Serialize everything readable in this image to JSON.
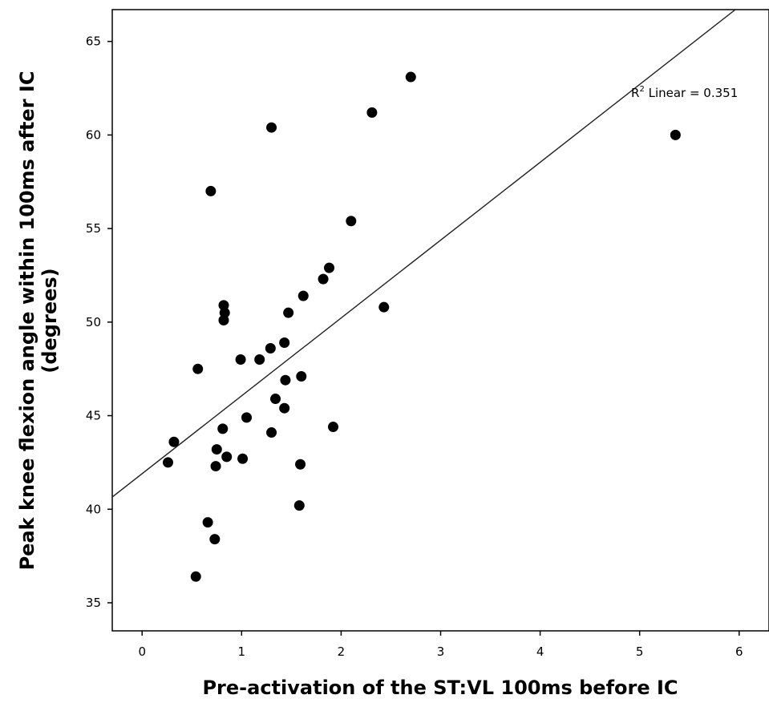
{
  "chart_data": {
    "type": "scatter",
    "title": "",
    "xlabel": "Pre-activation of the ST:VL 100ms before IC",
    "ylabel_line1": "Peak knee flexion angle within 100ms after IC",
    "ylabel_line2": "(degrees)",
    "xlim": [
      -0.3,
      6.3
    ],
    "ylim": [
      33.5,
      66.7
    ],
    "xticks": [
      0,
      1,
      2,
      3,
      4,
      5,
      6
    ],
    "yticks": [
      35,
      40,
      45,
      50,
      55,
      60,
      65
    ],
    "grid": false,
    "fit_line": {
      "label_prefix": "R",
      "label_superscript": "2",
      "label_suffix": " Linear = 0.351",
      "intercept": 41.9,
      "slope": 4.16
    },
    "points": [
      {
        "x": 0.26,
        "y": 42.5
      },
      {
        "x": 0.32,
        "y": 43.6
      },
      {
        "x": 0.54,
        "y": 36.4
      },
      {
        "x": 0.56,
        "y": 47.5
      },
      {
        "x": 0.66,
        "y": 39.3
      },
      {
        "x": 0.69,
        "y": 57.0
      },
      {
        "x": 0.73,
        "y": 38.4
      },
      {
        "x": 0.74,
        "y": 42.3
      },
      {
        "x": 0.75,
        "y": 43.2
      },
      {
        "x": 0.81,
        "y": 44.3
      },
      {
        "x": 0.82,
        "y": 50.1
      },
      {
        "x": 0.82,
        "y": 50.9
      },
      {
        "x": 0.83,
        "y": 50.5
      },
      {
        "x": 0.85,
        "y": 42.8
      },
      {
        "x": 0.99,
        "y": 48.0
      },
      {
        "x": 1.01,
        "y": 42.7
      },
      {
        "x": 1.05,
        "y": 44.9
      },
      {
        "x": 1.18,
        "y": 48.0
      },
      {
        "x": 1.29,
        "y": 48.6
      },
      {
        "x": 1.3,
        "y": 44.1
      },
      {
        "x": 1.3,
        "y": 60.4
      },
      {
        "x": 1.34,
        "y": 45.9
      },
      {
        "x": 1.43,
        "y": 45.4
      },
      {
        "x": 1.43,
        "y": 48.9
      },
      {
        "x": 1.44,
        "y": 46.9
      },
      {
        "x": 1.47,
        "y": 50.5
      },
      {
        "x": 1.58,
        "y": 40.2
      },
      {
        "x": 1.59,
        "y": 42.4
      },
      {
        "x": 1.6,
        "y": 47.1
      },
      {
        "x": 1.62,
        "y": 51.4
      },
      {
        "x": 1.82,
        "y": 52.3
      },
      {
        "x": 1.88,
        "y": 52.9
      },
      {
        "x": 1.92,
        "y": 44.4
      },
      {
        "x": 2.1,
        "y": 55.4
      },
      {
        "x": 2.31,
        "y": 61.2
      },
      {
        "x": 2.43,
        "y": 50.8
      },
      {
        "x": 2.7,
        "y": 63.1
      },
      {
        "x": 5.36,
        "y": 60.0
      }
    ]
  }
}
